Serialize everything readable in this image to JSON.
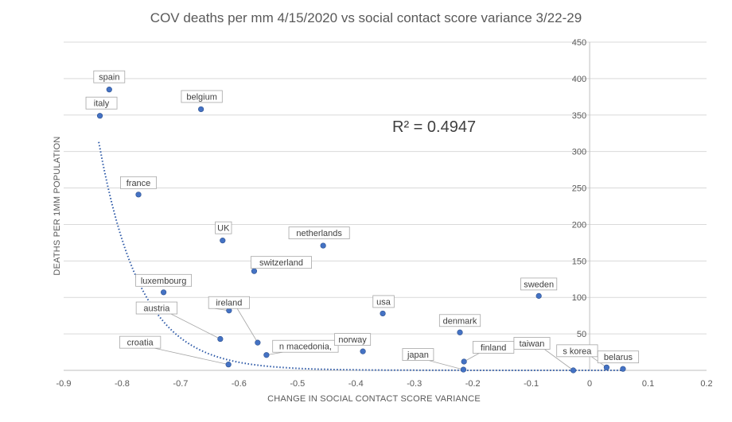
{
  "chart_data": {
    "type": "scatter",
    "title": "COV deaths per mm  4/15/2020 vs social contact score variance 3/22-29",
    "xlabel": "CHANGE  IN SOCIAL CONTACT  SCORE VARIANCE",
    "ylabel": "DEATHS PER 1MM POPULATION",
    "xlim": [
      -0.9,
      0.2
    ],
    "ylim": [
      0,
      450
    ],
    "x_ticks": [
      -0.9,
      -0.8,
      -0.7,
      -0.6,
      -0.5,
      -0.4,
      -0.3,
      -0.2,
      -0.1,
      0,
      0.1,
      0.2
    ],
    "x_tick_labels": [
      "-0.9",
      "-0.8",
      "-0.7",
      "-0.6",
      "-0.5",
      "-0.4",
      "-0.3",
      "-0.2",
      "-0.1",
      "0",
      "0.1",
      "0.2"
    ],
    "y_ticks": [
      50,
      100,
      150,
      200,
      250,
      300,
      350,
      400,
      450
    ],
    "y_tick_labels": [
      "50",
      "100",
      "150",
      "200",
      "250",
      "300",
      "350",
      "400",
      "450"
    ],
    "y_axis_side": "x=0",
    "grid": "horizontal",
    "marker_color": "#4472c4",
    "trendline": {
      "type": "exponential",
      "equation_y": "313 * exp(-13.94 * (x + 0.84))",
      "x_range": [
        -0.84,
        0.06
      ],
      "r_squared_label": "R² = 0.4947",
      "color": "#2e5aa8"
    },
    "points": [
      {
        "name": "spain",
        "x": -0.822,
        "y": 385
      },
      {
        "name": "italy",
        "x": -0.838,
        "y": 349
      },
      {
        "name": "belgium",
        "x": -0.665,
        "y": 358
      },
      {
        "name": "france",
        "x": -0.772,
        "y": 241
      },
      {
        "name": "UK",
        "x": -0.628,
        "y": 178
      },
      {
        "name": "netherlands",
        "x": -0.456,
        "y": 171
      },
      {
        "name": "switzerland",
        "x": -0.574,
        "y": 136
      },
      {
        "name": "luxembourg",
        "x": -0.729,
        "y": 107
      },
      {
        "name": "ireland",
        "x": -0.617,
        "y": 82
      },
      {
        "name": "austria",
        "x": -0.632,
        "y": 43
      },
      {
        "name": "croatia",
        "x": -0.618,
        "y": 8
      },
      {
        "name": "n macedonia,",
        "x": -0.553,
        "y": 21
      },
      {
        "name": "",
        "x": -0.568,
        "y": 38
      },
      {
        "name": "norway",
        "x": -0.388,
        "y": 26
      },
      {
        "name": "usa",
        "x": -0.354,
        "y": 78
      },
      {
        "name": "denmark",
        "x": -0.222,
        "y": 52
      },
      {
        "name": "japan",
        "x": -0.216,
        "y": 1
      },
      {
        "name": "finland",
        "x": -0.215,
        "y": 12
      },
      {
        "name": "sweden",
        "x": -0.087,
        "y": 102
      },
      {
        "name": "taiwan",
        "x": -0.028,
        "y": 0
      },
      {
        "name": "s korea",
        "x": 0.029,
        "y": 4
      },
      {
        "name": "belarus",
        "x": 0.057,
        "y": 2
      }
    ]
  }
}
